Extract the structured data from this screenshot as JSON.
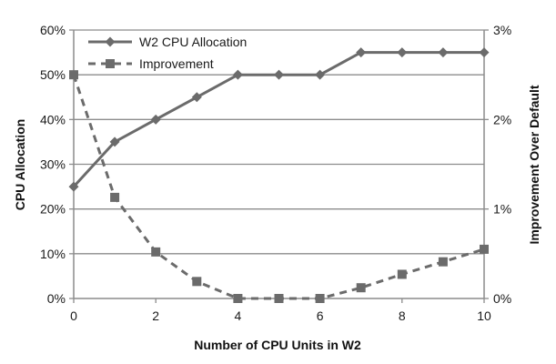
{
  "chart_data": {
    "type": "line",
    "x": [
      0,
      1,
      2,
      3,
      4,
      5,
      6,
      7,
      8,
      9,
      10
    ],
    "xlabel": "Number of CPU Units in W2",
    "xlim": [
      0,
      10
    ],
    "x_ticks": [
      "0",
      "2",
      "4",
      "6",
      "8",
      "10"
    ],
    "ylabel_left": "CPU Allocation",
    "ylim_left": [
      0,
      60
    ],
    "y_ticks_left": [
      "0%",
      "10%",
      "20%",
      "30%",
      "40%",
      "50%",
      "60%"
    ],
    "ylabel_right": "Improvement Over Default",
    "ylim_right": [
      0,
      3
    ],
    "y_ticks_right": [
      "0%",
      "1%",
      "2%",
      "3%"
    ],
    "grid": "horizontal",
    "legend_position": "top-left",
    "series": [
      {
        "name": "W2 CPU Allocation",
        "axis": "left",
        "style": "solid",
        "marker": "diamond",
        "color": "#6b6b6b",
        "values": [
          25,
          35,
          40,
          45,
          50,
          50,
          50,
          55,
          55,
          55,
          55
        ]
      },
      {
        "name": "Improvement",
        "axis": "right",
        "style": "dashed",
        "marker": "square",
        "color": "#6b6b6b",
        "values": [
          2.5,
          1.13,
          0.52,
          0.19,
          0.0,
          0.0,
          0.0,
          0.12,
          0.27,
          0.41,
          0.55
        ]
      }
    ]
  }
}
